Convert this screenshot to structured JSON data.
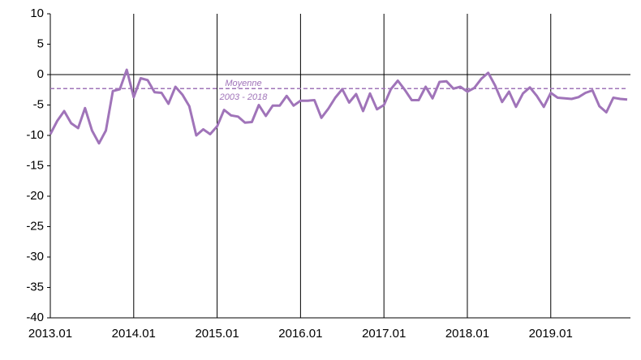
{
  "chart_data": {
    "type": "line",
    "categories": [
      "2013.01",
      null,
      null,
      null,
      null,
      null,
      null,
      null,
      null,
      null,
      null,
      null,
      "2014.01",
      null,
      null,
      null,
      null,
      null,
      null,
      null,
      null,
      null,
      null,
      null,
      "2015.01",
      null,
      null,
      null,
      null,
      null,
      null,
      null,
      null,
      null,
      null,
      null,
      "2016.01",
      null,
      null,
      null,
      null,
      null,
      null,
      null,
      null,
      null,
      null,
      null,
      "2017.01",
      null,
      null,
      null,
      null,
      null,
      null,
      null,
      null,
      null,
      null,
      null,
      "2018.01",
      null,
      null,
      null,
      null,
      null,
      null,
      null,
      null,
      null,
      null,
      null,
      "2019.01",
      null,
      null,
      null,
      null,
      null,
      null,
      null,
      null,
      null,
      null,
      null
    ],
    "values": [
      -9.8,
      -7.6,
      -6.0,
      -8.0,
      -8.8,
      -5.5,
      -9.2,
      -11.3,
      -9.2,
      -2.7,
      -2.4,
      0.8,
      -3.7,
      -0.6,
      -0.9,
      -2.9,
      -3.0,
      -4.8,
      -2.0,
      -3.3,
      -5.2,
      -10.0,
      -9.0,
      -9.8,
      -8.5,
      -5.8,
      -6.7,
      -6.9,
      -7.9,
      -7.8,
      -5.0,
      -6.8,
      -5.1,
      -5.1,
      -3.5,
      -5.1,
      -4.3,
      -4.3,
      -4.2,
      -7.1,
      -5.6,
      -3.8,
      -2.4,
      -4.6,
      -3.2,
      -6.0,
      -3.1,
      -5.7,
      -5.0,
      -2.4,
      -1.0,
      -2.5,
      -4.2,
      -4.2,
      -2.0,
      -3.9,
      -1.2,
      -1.1,
      -2.3,
      -2.0,
      -2.8,
      -2.2,
      -0.7,
      0.3,
      -1.8,
      -4.5,
      -2.8,
      -5.3,
      -3.1,
      -2.1,
      -3.5,
      -5.3,
      -3.0,
      -3.8,
      -3.9,
      -4.0,
      -3.7,
      -3.0,
      -2.6,
      -5.2,
      -6.2,
      -3.8,
      -4.0,
      -4.1
    ],
    "color": "#a074b9",
    "ylim": [
      -40,
      10
    ],
    "yticks": [
      10,
      5,
      0,
      -5,
      -10,
      -15,
      -20,
      -25,
      -30,
      -35,
      -40
    ],
    "reference_line": {
      "value": -2.3,
      "label_lines": [
        "Moyenne",
        "2003 - 2018"
      ]
    }
  }
}
